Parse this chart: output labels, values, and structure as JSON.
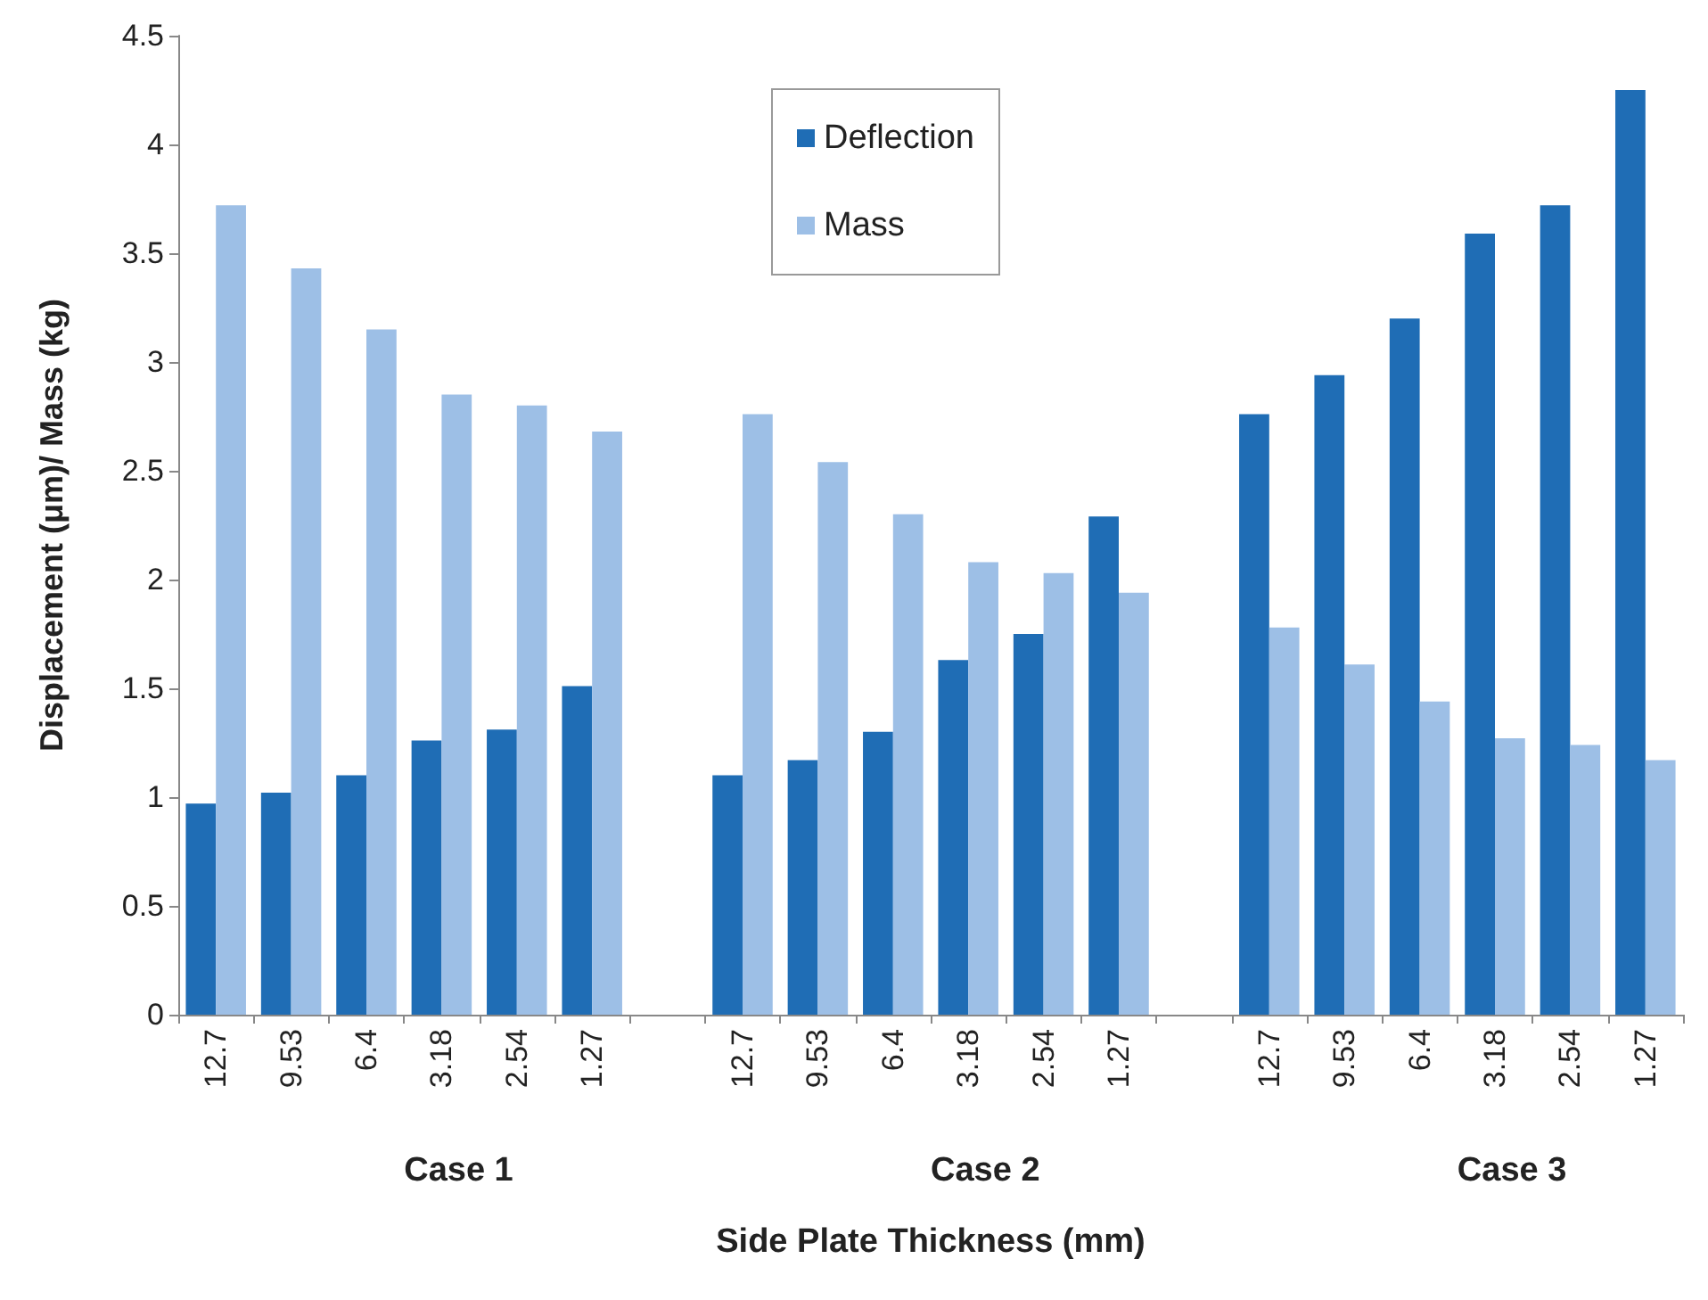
{
  "chart_data": {
    "type": "bar",
    "xlabel": "Side Plate Thickness (mm)",
    "ylabel": "Displacement (μm)/ Mass (kg)",
    "categories": [
      "12.7",
      "9.53",
      "6.4",
      "3.18",
      "2.54",
      "1.27",
      null,
      "12.7",
      "9.53",
      "6.4",
      "3.18",
      "2.54",
      "1.27",
      null,
      "12.7",
      "9.53",
      "6.4",
      "3.18",
      "2.54",
      "1.27"
    ],
    "series": [
      {
        "name": "Deflection",
        "color": "#1f6db5",
        "values": [
          0.97,
          1.02,
          1.1,
          1.26,
          1.31,
          1.51,
          null,
          1.1,
          1.17,
          1.3,
          1.63,
          1.75,
          2.29,
          null,
          2.76,
          2.94,
          3.2,
          3.59,
          3.72,
          4.25
        ]
      },
      {
        "name": "Mass",
        "color": "#9dbfe6",
        "values": [
          3.72,
          3.43,
          3.15,
          2.85,
          2.8,
          2.68,
          null,
          2.76,
          2.54,
          2.3,
          2.08,
          2.03,
          1.94,
          null,
          1.78,
          1.61,
          1.44,
          1.27,
          1.24,
          1.17
        ]
      }
    ],
    "annotations": [
      "Case 1",
      "Case 2",
      "Case 3"
    ],
    "ylim": [
      0,
      4.5
    ],
    "yticks": [
      0,
      0.5,
      1,
      1.5,
      2,
      2.5,
      3,
      3.5,
      4,
      4.5
    ],
    "grid": false,
    "legend": "top"
  }
}
